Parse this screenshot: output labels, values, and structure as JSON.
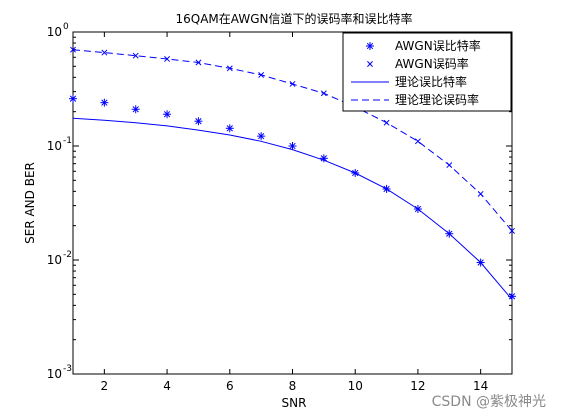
{
  "chart_data": {
    "type": "line",
    "title": "16QAM在AWGN信道下的误码率和误比特率",
    "xlabel": "SNR",
    "ylabel": "SER AND BER",
    "xlim": [
      1,
      15
    ],
    "ylim": [
      0.001,
      1
    ],
    "yscale": "log",
    "x_ticks": [
      2,
      4,
      6,
      8,
      10,
      12,
      14
    ],
    "y_ticks": [
      {
        "value": 0.001,
        "base": "10",
        "exp": "-3"
      },
      {
        "value": 0.01,
        "base": "10",
        "exp": "-2"
      },
      {
        "value": 0.1,
        "base": "10",
        "exp": "-1"
      },
      {
        "value": 1,
        "base": "10",
        "exp": "0"
      }
    ],
    "grid": false,
    "legend_position": "top-right",
    "x": [
      1,
      2,
      3,
      4,
      5,
      6,
      7,
      8,
      9,
      10,
      11,
      12,
      13,
      14,
      15
    ],
    "series": [
      {
        "name": "AWGN误比特率",
        "style": "marker",
        "marker": "asterisk",
        "color": "#0000ff",
        "values": [
          0.26,
          0.24,
          0.21,
          0.19,
          0.165,
          0.143,
          0.122,
          0.1,
          0.078,
          0.058,
          0.042,
          0.028,
          0.017,
          0.0095,
          0.0048
        ]
      },
      {
        "name": "AWGN误码率",
        "style": "marker",
        "marker": "x",
        "color": "#0000ff",
        "values": [
          0.7,
          0.66,
          0.62,
          0.58,
          0.54,
          0.48,
          0.42,
          0.35,
          0.29,
          0.22,
          0.16,
          0.11,
          0.068,
          0.038,
          0.018
        ]
      },
      {
        "name": "理论误比特率",
        "style": "solid",
        "color": "#0000ff",
        "values": [
          0.175,
          0.168,
          0.16,
          0.15,
          0.138,
          0.125,
          0.11,
          0.093,
          0.075,
          0.058,
          0.042,
          0.028,
          0.017,
          0.0095,
          0.0045
        ]
      },
      {
        "name": "理论理论误码率",
        "style": "dashed",
        "color": "#0000ff",
        "values": [
          0.7,
          0.66,
          0.62,
          0.58,
          0.54,
          0.48,
          0.42,
          0.35,
          0.29,
          0.22,
          0.16,
          0.11,
          0.068,
          0.038,
          0.018
        ]
      }
    ]
  },
  "watermark": "CSDN @紫极神光"
}
